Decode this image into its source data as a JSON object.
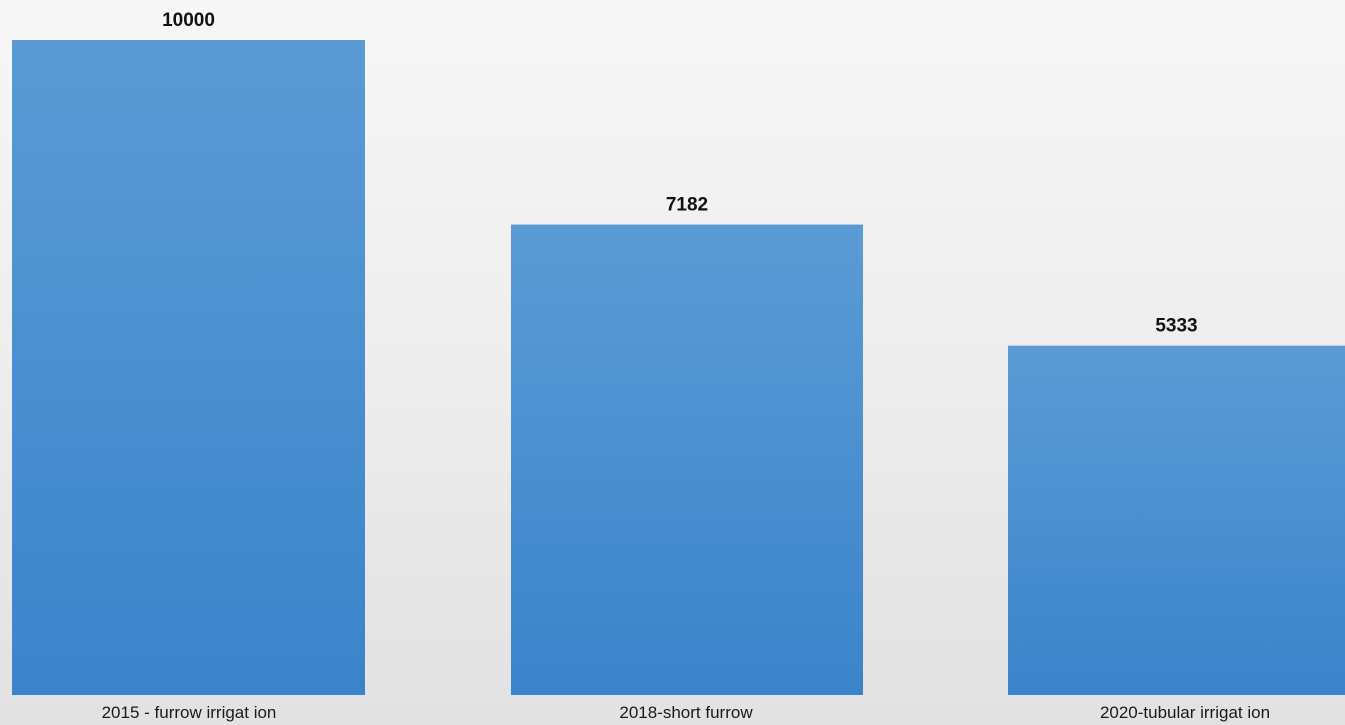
{
  "chart_data": {
    "type": "bar",
    "title": "",
    "xlabel": "",
    "ylabel": "",
    "categories": [
      "2015 - furrow irrigat ion",
      "2018-short furrow",
      "2020-tubular irrigat ion"
    ],
    "values": [
      10000,
      7182,
      5333
    ],
    "data_labels": [
      "10000",
      "7182",
      "5333"
    ],
    "ylim": [
      0,
      10000
    ],
    "grid": false,
    "legend": "none",
    "colors": {
      "bar_top": "#5b9bd5",
      "bar_bottom": "#3a84cb",
      "label_text": "#111111"
    }
  }
}
